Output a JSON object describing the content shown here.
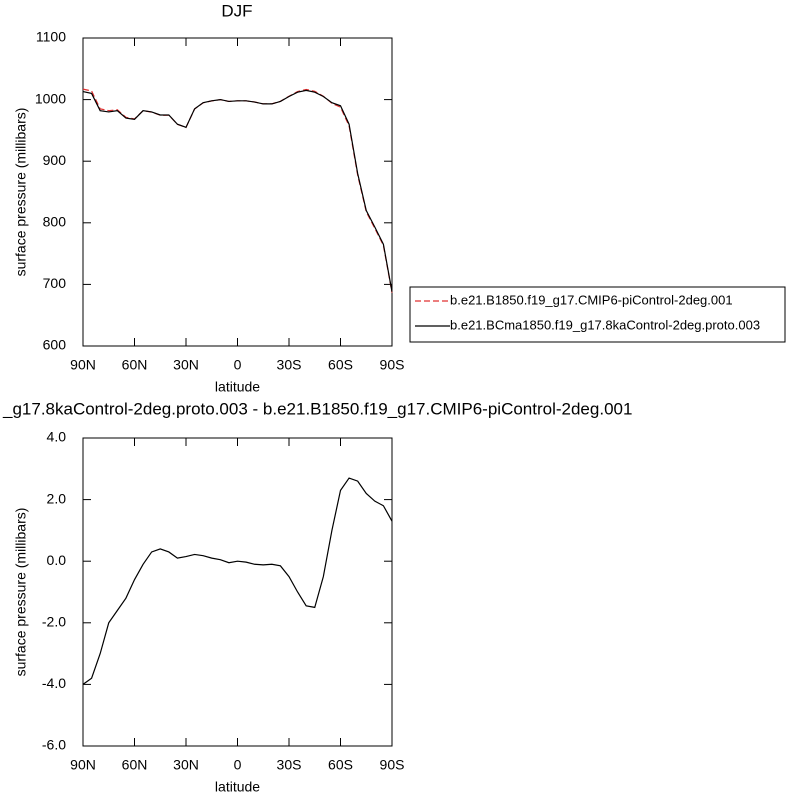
{
  "chart_data": [
    {
      "type": "line",
      "title": "DJF",
      "xlabel": "latitude",
      "ylabel": "surface pressure (millibars)",
      "x": [
        90,
        85,
        80,
        75,
        70,
        65,
        60,
        55,
        50,
        45,
        40,
        35,
        30,
        25,
        20,
        15,
        10,
        5,
        0,
        -5,
        -10,
        -15,
        -20,
        -25,
        -30,
        -35,
        -40,
        -45,
        -50,
        -55,
        -60,
        -65,
        -70,
        -75,
        -80,
        -85,
        -90
      ],
      "series": [
        {
          "name": "b.e21.B1850.f19_g17.CMIP6-piControl-2deg.001",
          "color": "#e03030",
          "dash": true,
          "values": [
            1017,
            1014,
            985,
            982,
            983.6,
            971.2,
            968.6,
            982.1,
            979.7,
            974.6,
            974.7,
            959.9,
            954.8,
            984.8,
            994.8,
            997.9,
            999.9,
            997,
            998,
            998,
            996.1,
            993.1,
            993.1,
            997.2,
            1005.5,
            1013,
            1016.5,
            1013.5,
            1005.5,
            994,
            987.7,
            957.3,
            877.4,
            817.8,
            791,
            763.2,
            686.7
          ]
        },
        {
          "name": "b.e21.BCma1850.f19_g17.8kaControl-2deg.proto.003",
          "color": "#000000",
          "dash": false,
          "values": [
            1013,
            1010,
            982,
            980,
            982,
            970,
            968,
            982,
            980,
            975,
            975,
            960,
            955,
            985,
            995,
            998,
            1000,
            997,
            998,
            998,
            996,
            993,
            993,
            997,
            1005,
            1012,
            1015,
            1012,
            1005,
            995,
            990,
            960,
            880,
            820,
            793,
            765,
            688
          ]
        }
      ],
      "xlim": [
        90,
        -90
      ],
      "xticks": [
        {
          "value": 90,
          "label": "90N"
        },
        {
          "value": 60,
          "label": "60N"
        },
        {
          "value": 30,
          "label": "30N"
        },
        0,
        {
          "value": -30,
          "label": "30S"
        },
        {
          "value": -60,
          "label": "60S"
        },
        {
          "value": -90,
          "label": "90S"
        }
      ],
      "ylim": [
        600,
        1100
      ],
      "yticks": [
        600,
        700,
        800,
        900,
        1000,
        1100
      ],
      "legend": "right"
    },
    {
      "type": "line",
      "title": "_g17.8kaControl-2deg.proto.003 - b.e21.B1850.f19_g17.CMIP6-piControl-2deg.001",
      "xlabel": "latitude",
      "ylabel": "surface pressure (millibars)",
      "x": [
        90,
        85,
        80,
        75,
        70,
        65,
        60,
        55,
        50,
        45,
        40,
        35,
        30,
        25,
        20,
        15,
        10,
        5,
        0,
        -5,
        -10,
        -15,
        -20,
        -25,
        -30,
        -35,
        -40,
        -45,
        -50,
        -55,
        -60,
        -65,
        -70,
        -75,
        -80,
        -85,
        -90
      ],
      "series": [
        {
          "color": "#000000",
          "dash": false,
          "values": [
            -4.0,
            -3.8,
            -3.0,
            -2.0,
            -1.6,
            -1.2,
            -0.6,
            -0.1,
            0.3,
            0.4,
            0.3,
            0.1,
            0.15,
            0.22,
            0.18,
            0.1,
            0.05,
            -0.05,
            0.0,
            -0.03,
            -0.1,
            -0.12,
            -0.1,
            -0.15,
            -0.5,
            -1.0,
            -1.45,
            -1.5,
            -0.5,
            1.0,
            2.3,
            2.7,
            2.6,
            2.2,
            1.95,
            1.8,
            1.3
          ]
        }
      ],
      "xlim": [
        90,
        -90
      ],
      "xticks": [
        {
          "value": 90,
          "label": "90N"
        },
        {
          "value": 60,
          "label": "60N"
        },
        {
          "value": 30,
          "label": "30N"
        },
        0,
        {
          "value": -30,
          "label": "30S"
        },
        {
          "value": -60,
          "label": "60S"
        },
        {
          "value": -90,
          "label": "90S"
        }
      ],
      "ylim": [
        -6,
        4
      ],
      "yticks": [
        {
          "value": -6,
          "label": "-6.0"
        },
        {
          "value": -4,
          "label": "-4.0"
        },
        {
          "value": -2,
          "label": "-2.0"
        },
        {
          "value": 0,
          "label": "0.0"
        },
        {
          "value": 2,
          "label": "2.0"
        },
        {
          "value": 4,
          "label": "4.0"
        }
      ]
    }
  ]
}
